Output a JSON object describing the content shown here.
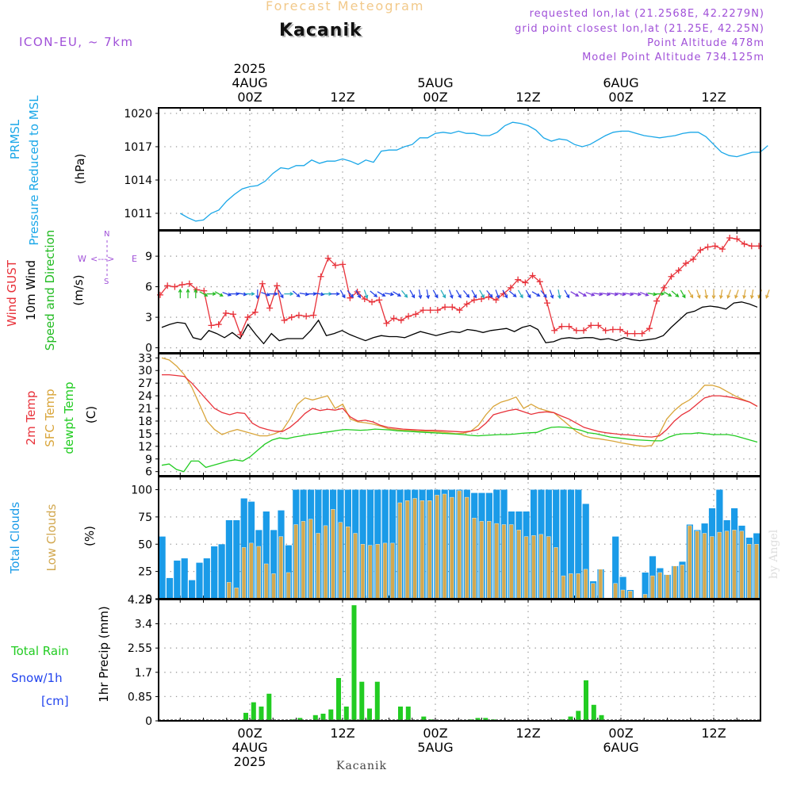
{
  "header": {
    "supertitle": "Forecast Meteogram",
    "location": "Kacanik",
    "model": "ICON-EU, ~ 7km",
    "requested": "requested lon,lat (21.2568E, 42.2279N)",
    "gridpoint": "grid point closest lon,lat (21.25E, 42.25N)",
    "point_altitude": "Point Altitude 478m",
    "model_altitude": "Model Point Altitude 734.125m"
  },
  "footer": {
    "location": "Kacanik"
  },
  "watermark": "by Angel",
  "colors": {
    "pressure": "#1aa7e8",
    "gust": "#e8323a",
    "wind10m": "#000000",
    "dir": "#22bb22",
    "t2m": "#e8323a",
    "tsfc": "#d9a53a",
    "dewpt": "#22cc22",
    "total_cloud": "#1a9be8",
    "low_cloud": "#d2a850",
    "rain": "#22cc22",
    "snow": "#2244ee",
    "compass": "#a050d8"
  },
  "chart_data": [
    {
      "type": "line",
      "panel": "pressure",
      "ylabel_lines": [
        "PRMSL",
        "Pressure Reduced to MSL"
      ],
      "unit": "(hPa)",
      "ylim": [
        1009.5,
        1020.5
      ],
      "yticks": [
        1011,
        1014,
        1017,
        1020
      ],
      "x_start_hour": -9,
      "x_step_hours": 1,
      "series": [
        {
          "name": "PRMSL",
          "values": [
            1011.0,
            1010.6,
            1010.3,
            1010.4,
            1011.0,
            1011.3,
            1012.1,
            1012.7,
            1013.2,
            1013.4,
            1013.5,
            1013.9,
            1014.6,
            1015.1,
            1015.0,
            1015.3,
            1015.3,
            1015.8,
            1015.5,
            1015.7,
            1015.7,
            1015.9,
            1015.7,
            1015.4,
            1015.8,
            1015.6,
            1016.6,
            1016.7,
            1016.7,
            1017.0,
            1017.2,
            1017.8,
            1017.8,
            1018.2,
            1018.3,
            1018.2,
            1018.4,
            1018.2,
            1018.2,
            1018.0,
            1018.0,
            1018.3,
            1018.9,
            1019.2,
            1019.1,
            1018.9,
            1018.5,
            1017.8,
            1017.5,
            1017.7,
            1017.6,
            1017.2,
            1017.0,
            1017.2,
            1017.6,
            1018.0,
            1018.3,
            1018.4,
            1018.4,
            1018.2,
            1018.0,
            1017.9,
            1017.8,
            1017.9,
            1018.0,
            1018.2,
            1018.3,
            1018.3,
            1017.9,
            1017.2,
            1016.5,
            1016.2,
            1016.1,
            1016.3,
            1016.5,
            1016.5,
            1017.1
          ]
        }
      ],
      "xticks_top": [
        "00Z",
        "12Z",
        "00Z",
        "12Z",
        "00Z",
        "12Z"
      ],
      "dates_top": [
        "4AUG",
        "5AUG",
        "6AUG"
      ],
      "year": "2025"
    },
    {
      "type": "line",
      "panel": "wind",
      "ylabel_lines": [
        "Wind GUST",
        "10m Wind",
        "Speed and Direction"
      ],
      "unit": "(m/s)",
      "ylim": [
        -0.5,
        11.5
      ],
      "yticks": [
        0,
        3,
        6,
        9
      ],
      "compass": {
        "n": "N",
        "s": "S",
        "w": "W",
        "e": "E",
        "wlabel": "W <--> E",
        "nlabel": "N",
        "slabel": "S"
      },
      "series": [
        {
          "name": "Wind GUST",
          "values": [
            5.2,
            6.1,
            6.0,
            6.2,
            6.3,
            5.7,
            5.6,
            2.2,
            2.3,
            3.4,
            3.3,
            1.3,
            3.0,
            3.5,
            6.3,
            3.9,
            6.1,
            2.7,
            3.0,
            3.2,
            3.1,
            3.2,
            7.0,
            8.8,
            8.1,
            8.2,
            4.9,
            5.5,
            4.8,
            4.5,
            4.7,
            2.4,
            2.9,
            2.7,
            3.1,
            3.3,
            3.7,
            3.7,
            3.7,
            4.0,
            4.0,
            3.7,
            4.3,
            4.7,
            4.8,
            5.0,
            4.7,
            5.3,
            5.9,
            6.7,
            6.4,
            7.1,
            6.5,
            4.4,
            1.7,
            2.1,
            2.1,
            1.7,
            1.7,
            2.2,
            2.2,
            1.7,
            1.8,
            1.8,
            1.4,
            1.4,
            1.4,
            1.9,
            4.6,
            5.9,
            7.0,
            7.6,
            8.3,
            8.7,
            9.6,
            9.9,
            10.0,
            9.7,
            10.8,
            10.7,
            10.2,
            10.0,
            10.0
          ]
        },
        {
          "name": "10m Wind",
          "values": [
            2.0,
            2.3,
            2.5,
            2.4,
            1.0,
            0.8,
            1.7,
            1.4,
            1.0,
            1.5,
            0.9,
            2.3,
            1.3,
            0.4,
            1.4,
            0.7,
            0.9,
            0.9,
            0.9,
            1.7,
            2.7,
            1.2,
            1.4,
            1.7,
            1.3,
            1.0,
            0.7,
            1.0,
            1.2,
            1.1,
            1.1,
            1.0,
            1.3,
            1.6,
            1.4,
            1.2,
            1.4,
            1.6,
            1.5,
            1.8,
            1.7,
            1.5,
            1.7,
            1.8,
            1.9,
            1.6,
            2.0,
            2.2,
            1.8,
            0.5,
            0.6,
            0.9,
            1.0,
            0.9,
            1.0,
            1.0,
            0.8,
            0.9,
            0.7,
            1.0,
            0.8,
            0.7,
            0.8,
            0.9,
            1.2,
            2.0,
            2.7,
            3.4,
            3.6,
            4.0,
            4.1,
            4.0,
            3.8,
            4.4,
            4.5,
            4.3,
            4.0
          ]
        }
      ],
      "direction_arrows": {
        "level": 5.3,
        "hours": [
          -9,
          -8,
          -7,
          -6,
          -5,
          -4,
          -3,
          -2,
          -1,
          0,
          1,
          2,
          3,
          4,
          5,
          6,
          7,
          8,
          9,
          10,
          11,
          12,
          13,
          14,
          15,
          16,
          17,
          18,
          19,
          20,
          21,
          22,
          23,
          24,
          25,
          26,
          27,
          28,
          29,
          30,
          31,
          32,
          33,
          34,
          35,
          36,
          37,
          38,
          39,
          40,
          41,
          42,
          43,
          44,
          45,
          46,
          47,
          48,
          49,
          50,
          51,
          52,
          53,
          54,
          55,
          56,
          57,
          58,
          59,
          60,
          61,
          62,
          63,
          64,
          65,
          66,
          67
        ],
        "dir_deg": [
          180,
          180,
          180,
          300,
          270,
          300,
          290,
          270,
          280,
          270,
          0,
          290,
          270,
          330,
          270,
          310,
          280,
          270,
          280,
          270,
          270,
          330,
          320,
          330,
          340,
          310,
          300,
          280,
          300,
          320,
          330,
          350,
          350,
          330,
          330,
          340,
          330,
          320,
          330,
          330,
          320,
          340,
          330,
          310,
          330,
          330,
          300,
          320,
          340,
          350,
          330,
          300,
          300,
          290,
          280,
          280,
          280,
          280,
          280,
          280,
          290,
          280,
          270,
          300,
          310,
          330,
          330,
          340,
          350,
          0,
          10,
          20,
          20,
          10,
          10,
          20,
          20
        ]
      }
    },
    {
      "type": "line",
      "panel": "temperature",
      "ylabel_lines": [
        "2m Temp",
        "SFC Temp",
        "dewpt Temp"
      ],
      "unit": "(C)",
      "ylim": [
        5,
        34
      ],
      "yticks": [
        6,
        9,
        12,
        15,
        18,
        21,
        24,
        27,
        30,
        33
      ],
      "series": [
        {
          "name": "2m Temp",
          "values": [
            29,
            29,
            28.8,
            28.6,
            27,
            25,
            23,
            21,
            20,
            19.5,
            20,
            19.8,
            17.5,
            16.5,
            16,
            15.6,
            15.5,
            16.5,
            18,
            19.8,
            21,
            20.5,
            20.8,
            20.6,
            21,
            19,
            18,
            18.2,
            17.8,
            17,
            16.5,
            16.3,
            16.1,
            16,
            15.9,
            15.8,
            15.8,
            15.7,
            15.6,
            15.5,
            15.4,
            15.6,
            16,
            17.5,
            19.5,
            20,
            20.5,
            20.8,
            20.2,
            19.6,
            20,
            20.2,
            20,
            19.2,
            18.5,
            17.5,
            16.5,
            16,
            15.5,
            15.2,
            15,
            14.8,
            14.7,
            14.5,
            14.3,
            14.2,
            14.5,
            16,
            18,
            19.5,
            20.5,
            22,
            23.5,
            24,
            24,
            23.8,
            23.5,
            23,
            22.5,
            21.5
          ]
        },
        {
          "name": "SFC Temp",
          "values": [
            33,
            32.5,
            31,
            29,
            26,
            22,
            18,
            16,
            14.8,
            15.5,
            16,
            15.5,
            15,
            14.5,
            14.5,
            15,
            15.8,
            18.5,
            22,
            23.5,
            23,
            23.5,
            24,
            21,
            22,
            18.5,
            17.8,
            17.6,
            17.3,
            16.8,
            16.2,
            16,
            15.8,
            15.8,
            15.6,
            15.6,
            15.5,
            15.4,
            15.2,
            15,
            15.1,
            15.6,
            17,
            19.5,
            21.5,
            22.5,
            23,
            23.7,
            21,
            22,
            21,
            20.5,
            20,
            18.5,
            17,
            15.5,
            14.5,
            14,
            13.8,
            13.5,
            13.2,
            12.8,
            12.5,
            12.2,
            12,
            12.2,
            15,
            18.5,
            20.5,
            22,
            23,
            24.5,
            26.5,
            26.5,
            26,
            25,
            24,
            23.2,
            22.5,
            21.5
          ]
        },
        {
          "name": "dewpt Temp",
          "values": [
            7.5,
            7.8,
            6.5,
            6,
            8.5,
            8.5,
            7,
            7.5,
            8,
            8.5,
            8.8,
            8.5,
            9.5,
            11,
            12.5,
            13.5,
            14,
            13.8,
            14.2,
            14.5,
            14.8,
            15,
            15.3,
            15.5,
            15.8,
            16,
            15.9,
            15.8,
            15.9,
            16.1,
            16,
            15.9,
            15.7,
            15.6,
            15.5,
            15.4,
            15.3,
            15.2,
            15.1,
            15,
            14.9,
            14.8,
            14.6,
            14.5,
            14.6,
            14.7,
            14.8,
            14.8,
            14.9,
            15.1,
            15.2,
            15.3,
            16,
            16.5,
            16.6,
            16.5,
            16.2,
            15.8,
            15.2,
            15,
            14.6,
            14.2,
            14,
            13.8,
            13.6,
            13.5,
            13.4,
            13.3,
            13.3,
            14.2,
            14.8,
            15,
            15,
            15.2,
            15,
            14.8,
            14.8,
            14.8,
            14.5,
            14,
            13.5,
            13
          ]
        }
      ]
    },
    {
      "type": "bar",
      "panel": "clouds",
      "ylabel_lines": [
        "Total Clouds",
        "Low Clouds"
      ],
      "unit": "(%)",
      "ylim": [
        0,
        112
      ],
      "yticks": [
        0,
        25,
        50,
        75,
        100
      ],
      "series": [
        {
          "name": "Total Clouds",
          "values": [
            57,
            19,
            35,
            37,
            17,
            33,
            37,
            48,
            50,
            72,
            72,
            92,
            89,
            63,
            80,
            63,
            81,
            49,
            100,
            100,
            100,
            100,
            100,
            100,
            100,
            100,
            100,
            100,
            100,
            100,
            100,
            100,
            100,
            100,
            100,
            100,
            100,
            100,
            100,
            100,
            100,
            100,
            97,
            97,
            97,
            100,
            100,
            80,
            80,
            80,
            100,
            100,
            100,
            100,
            100,
            100,
            100,
            87,
            16,
            27,
            0,
            57,
            20,
            8,
            0,
            24,
            39,
            28,
            22,
            30,
            34,
            68,
            63,
            69,
            83,
            100,
            72,
            83,
            67,
            56,
            60
          ]
        },
        {
          "name": "Low Clouds",
          "values": [
            0,
            0,
            0,
            0,
            0,
            0,
            0,
            0,
            0,
            15,
            10,
            47,
            51,
            48,
            32,
            23,
            57,
            24,
            68,
            71,
            73,
            60,
            67,
            82,
            70,
            66,
            60,
            50,
            49,
            50,
            51,
            51,
            88,
            90,
            92,
            90,
            90,
            95,
            96,
            93,
            99,
            93,
            74,
            71,
            71,
            69,
            68,
            68,
            63,
            57,
            58,
            59,
            57,
            47,
            21,
            23,
            23,
            27,
            14,
            27,
            0,
            14,
            8,
            7,
            0,
            4,
            21,
            24,
            22,
            30,
            31,
            67,
            62,
            60,
            57,
            61,
            62,
            63,
            62,
            50,
            50
          ]
        }
      ]
    },
    {
      "type": "bar",
      "panel": "precip",
      "ylabel_lines": [
        "Total  Rain",
        "Snow/1h",
        "[cm]"
      ],
      "unit": "1hr Precip (mm)",
      "ylim": [
        0,
        4.25
      ],
      "yticks": [
        0,
        0.85,
        1.7,
        2.55,
        3.4,
        4.25
      ],
      "ytick_labels": [
        "0",
        "0.85",
        "1.7",
        "2.55",
        "3.4",
        "4.25"
      ],
      "bar_hours": [
        0,
        1,
        2,
        3,
        4,
        5,
        6,
        7,
        8,
        9,
        10,
        11,
        12,
        13,
        14,
        15,
        16,
        17,
        18,
        19,
        20,
        21,
        22,
        23,
        24,
        25,
        26,
        27,
        28,
        29,
        30,
        31,
        32,
        33,
        34,
        35,
        36,
        37,
        38,
        39,
        40,
        41,
        42,
        43,
        44,
        45,
        46,
        47,
        48,
        49,
        50,
        51,
        52,
        53
      ],
      "series": [
        {
          "name": "Total Rain",
          "values": [
            0.28,
            0.65,
            0.5,
            0.95,
            0,
            0,
            0.05,
            0.1,
            0,
            0.2,
            0.25,
            0.4,
            1.5,
            0.5,
            4.05,
            1.37,
            0.43,
            1.37,
            0,
            0,
            0.5,
            0.5,
            0,
            0.15,
            0.05,
            0,
            0,
            0,
            0,
            0.05,
            0.1,
            0.1,
            0.05,
            0,
            0,
            0,
            0,
            0,
            0,
            0,
            0,
            0.05,
            0.15,
            0.35,
            1.42,
            0.56,
            0.2,
            0,
            0,
            0,
            0,
            0,
            0,
            0
          ]
        },
        {
          "name": "Snow/1h",
          "values": [
            0,
            0,
            0,
            0,
            0,
            0,
            0,
            0,
            0,
            0,
            0,
            0,
            0,
            0,
            0,
            0,
            0,
            0,
            0,
            0,
            0,
            0,
            0,
            0,
            0,
            0,
            0,
            0,
            0,
            0,
            0,
            0,
            0,
            0,
            0,
            0,
            0,
            0,
            0,
            0,
            0,
            0,
            0,
            0,
            0,
            0,
            0,
            0,
            0,
            0,
            0,
            0,
            0,
            0
          ]
        }
      ],
      "xticks_bottom": [
        "00Z",
        "12Z",
        "00Z",
        "12Z",
        "00Z",
        "12Z"
      ],
      "dates_bottom": [
        "4AUG",
        "5AUG",
        "6AUG"
      ],
      "year": "2025"
    }
  ]
}
